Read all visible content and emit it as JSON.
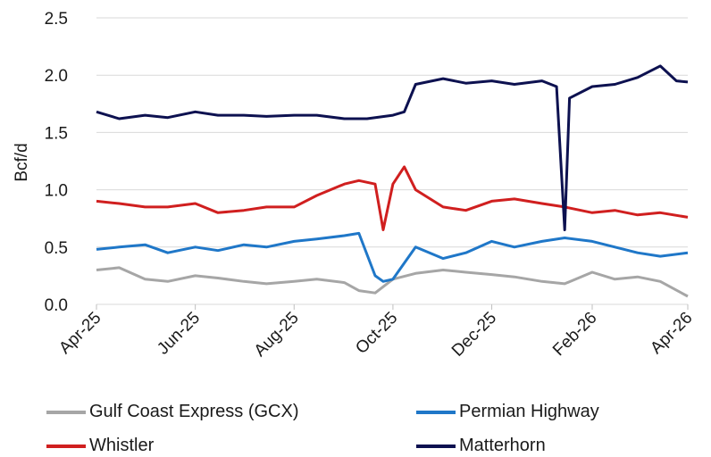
{
  "chart_data": {
    "type": "line",
    "title": "",
    "xlabel": "",
    "ylabel": "Bcf/d",
    "ylim": [
      0,
      2.5
    ],
    "yticks": [
      "0.0",
      "0.5",
      "1.0",
      "1.5",
      "2.0",
      "2.5"
    ],
    "xticks": [
      "Apr-25",
      "Jun-25",
      "Aug-25",
      "Oct-25",
      "Dec-25",
      "Feb-26",
      "Apr-26"
    ],
    "grid": "horizontal",
    "legend_position": "bottom",
    "series": [
      {
        "name": "Gulf Coast Express (GCX)",
        "color": "#a6a6a6",
        "x": [
          "2025-04-01",
          "2025-04-15",
          "2025-05-01",
          "2025-05-15",
          "2025-06-01",
          "2025-06-15",
          "2025-07-01",
          "2025-07-15",
          "2025-08-01",
          "2025-08-15",
          "2025-09-01",
          "2025-09-10",
          "2025-09-20",
          "2025-10-01",
          "2025-10-15",
          "2025-11-01",
          "2025-11-15",
          "2025-12-01",
          "2025-12-15",
          "2026-01-01",
          "2026-01-15",
          "2026-02-01",
          "2026-02-15",
          "2026-03-01",
          "2026-03-15",
          "2026-04-01"
        ],
        "values": [
          0.3,
          0.32,
          0.22,
          0.2,
          0.25,
          0.23,
          0.2,
          0.18,
          0.2,
          0.22,
          0.19,
          0.12,
          0.1,
          0.22,
          0.27,
          0.3,
          0.28,
          0.26,
          0.24,
          0.2,
          0.18,
          0.28,
          0.22,
          0.24,
          0.2,
          0.07
        ]
      },
      {
        "name": "Permian Highway",
        "color": "#1f77c8",
        "x": [
          "2025-04-01",
          "2025-04-15",
          "2025-05-01",
          "2025-05-15",
          "2025-06-01",
          "2025-06-15",
          "2025-07-01",
          "2025-07-15",
          "2025-08-01",
          "2025-08-15",
          "2025-09-01",
          "2025-09-10",
          "2025-09-20",
          "2025-09-25",
          "2025-10-01",
          "2025-10-15",
          "2025-11-01",
          "2025-11-15",
          "2025-12-01",
          "2025-12-15",
          "2026-01-01",
          "2026-01-15",
          "2026-02-01",
          "2026-02-15",
          "2026-03-01",
          "2026-03-15",
          "2026-04-01"
        ],
        "values": [
          0.48,
          0.5,
          0.52,
          0.45,
          0.5,
          0.47,
          0.52,
          0.5,
          0.55,
          0.57,
          0.6,
          0.62,
          0.25,
          0.2,
          0.22,
          0.5,
          0.4,
          0.45,
          0.55,
          0.5,
          0.55,
          0.58,
          0.55,
          0.5,
          0.45,
          0.42,
          0.45
        ]
      },
      {
        "name": "Whistler",
        "color": "#d01f1f",
        "x": [
          "2025-04-01",
          "2025-04-15",
          "2025-05-01",
          "2025-05-15",
          "2025-06-01",
          "2025-06-15",
          "2025-07-01",
          "2025-07-15",
          "2025-08-01",
          "2025-08-15",
          "2025-09-01",
          "2025-09-10",
          "2025-09-20",
          "2025-09-25",
          "2025-10-01",
          "2025-10-08",
          "2025-10-15",
          "2025-11-01",
          "2025-11-15",
          "2025-12-01",
          "2025-12-15",
          "2026-01-01",
          "2026-01-15",
          "2026-02-01",
          "2026-02-15",
          "2026-03-01",
          "2026-03-15",
          "2026-04-01"
        ],
        "values": [
          0.9,
          0.88,
          0.85,
          0.85,
          0.88,
          0.8,
          0.82,
          0.85,
          0.85,
          0.95,
          1.05,
          1.08,
          1.05,
          0.65,
          1.05,
          1.2,
          1.0,
          0.85,
          0.82,
          0.9,
          0.92,
          0.88,
          0.85,
          0.8,
          0.82,
          0.78,
          0.8,
          0.76
        ]
      },
      {
        "name": "Matterhorn",
        "color": "#0d1150",
        "x": [
          "2025-04-01",
          "2025-04-15",
          "2025-05-01",
          "2025-05-15",
          "2025-06-01",
          "2025-06-15",
          "2025-07-01",
          "2025-07-15",
          "2025-08-01",
          "2025-08-15",
          "2025-09-01",
          "2025-09-15",
          "2025-10-01",
          "2025-10-08",
          "2025-10-15",
          "2025-11-01",
          "2025-11-15",
          "2025-12-01",
          "2025-12-15",
          "2026-01-01",
          "2026-01-10",
          "2026-01-15",
          "2026-01-18",
          "2026-02-01",
          "2026-02-15",
          "2026-03-01",
          "2026-03-15",
          "2026-03-25",
          "2026-04-01"
        ],
        "values": [
          1.68,
          1.62,
          1.65,
          1.63,
          1.68,
          1.65,
          1.65,
          1.64,
          1.65,
          1.65,
          1.62,
          1.62,
          1.65,
          1.68,
          1.92,
          1.97,
          1.93,
          1.95,
          1.92,
          1.95,
          1.9,
          0.65,
          1.8,
          1.9,
          1.92,
          1.98,
          2.08,
          1.95,
          1.94
        ]
      }
    ]
  }
}
